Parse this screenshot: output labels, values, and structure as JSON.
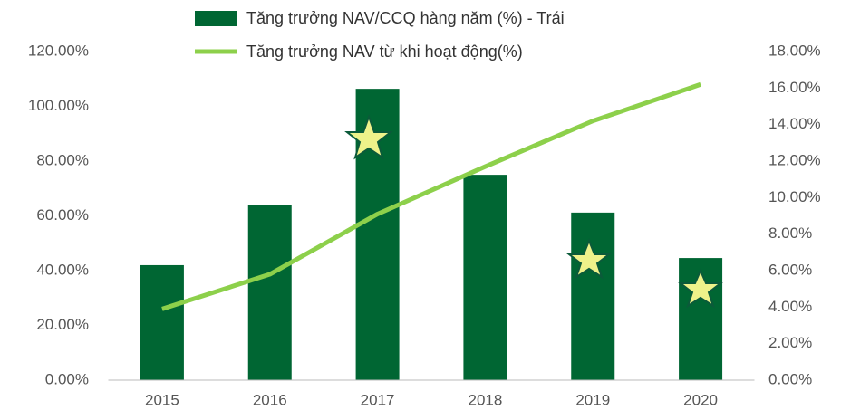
{
  "chart_data": {
    "type": "bar",
    "categories": [
      "2015",
      "2016",
      "2017",
      "2018",
      "2019",
      "2020"
    ],
    "series": [
      {
        "name": "Tăng trưởng NAV/CCQ hàng năm (%) - Trái",
        "type": "bar",
        "color": "#006633",
        "values": [
          42.0,
          63.8,
          106.4,
          75.0,
          61.2,
          44.6
        ]
      },
      {
        "name": "Tăng trưởng NAV từ khi hoạt động(%)",
        "type": "line",
        "axis": "y2",
        "color": "#8dd04b",
        "values": [
          3.9,
          5.8,
          9.1,
          11.7,
          14.2,
          16.2
        ]
      }
    ],
    "ylim": [
      0,
      120
    ],
    "yticks": [
      {
        "value": 0,
        "label": "0.00%"
      },
      {
        "value": 20,
        "label": "20.00%"
      },
      {
        "value": 40,
        "label": "40.00%"
      },
      {
        "value": 60,
        "label": "60.00%"
      },
      {
        "value": 80,
        "label": "80.00%"
      },
      {
        "value": 100,
        "label": "100.00%"
      },
      {
        "value": 120,
        "label": "120.00%"
      }
    ],
    "y2lim": [
      0,
      18
    ],
    "y2ticks": [
      {
        "value": 0,
        "label": "0.00%"
      },
      {
        "value": 2,
        "label": "2.00%"
      },
      {
        "value": 4,
        "label": "4.00%"
      },
      {
        "value": 6,
        "label": "6.00%"
      },
      {
        "value": 8,
        "label": "8.00%"
      },
      {
        "value": 10,
        "label": "10.00%"
      },
      {
        "value": 12,
        "label": "12.00%"
      },
      {
        "value": 14,
        "label": "14.00%"
      },
      {
        "value": 16,
        "label": "16.00%"
      },
      {
        "value": 18,
        "label": "18.00%"
      }
    ],
    "grid": false,
    "legend": "top"
  }
}
